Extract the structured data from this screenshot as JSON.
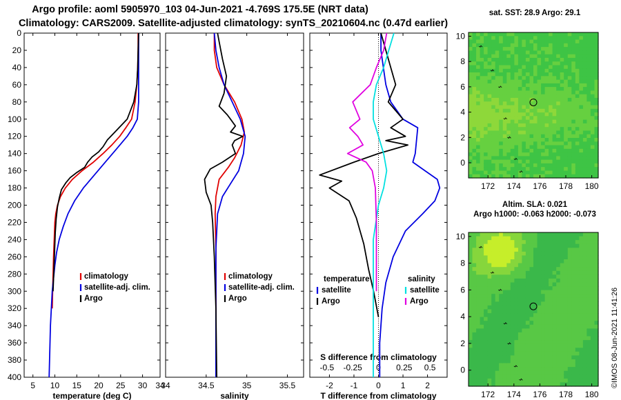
{
  "header": {
    "line1": "Argo profile: aoml 5905970_103 04-Jun-2021 -4.769S 175.5E (NRT data)",
    "line2": "Climatology: CARS2009. Satellite-adjusted climatology: synTS_20210604.nc (0.47d earlier)"
  },
  "colors": {
    "climatology": "#e00000",
    "satellite": "#0000e0",
    "argo": "#000000",
    "satellite_s": "#00e0e0",
    "salinity_diff": "#e000e0"
  },
  "depth_axis": {
    "ylim": [
      0,
      400
    ],
    "ticks": [
      0,
      20,
      40,
      60,
      80,
      100,
      120,
      140,
      160,
      180,
      200,
      220,
      240,
      260,
      280,
      300,
      320,
      340,
      360,
      380,
      400
    ]
  },
  "chart_data": [
    {
      "type": "line",
      "id": "temperature",
      "xlabel": "temperature (deg C)",
      "ylabel": "depth",
      "xlim": [
        3,
        34
      ],
      "ylim": [
        0,
        400
      ],
      "xticks": [
        5,
        10,
        15,
        20,
        25,
        30,
        34
      ],
      "legend": [
        "climatology",
        "satellite-adj. clim.",
        "Argo"
      ],
      "series": [
        {
          "name": "climatology",
          "color_key": "climatology",
          "x": [
            29.0,
            29.0,
            28.9,
            28.7,
            28.3,
            27.5,
            26.2,
            24.8,
            23.0,
            21.0,
            18.8,
            16.2,
            14.0,
            12.4,
            11.3,
            10.6,
            10.2,
            10.0,
            9.7,
            9.5,
            9.4
          ],
          "y": [
            0,
            20,
            40,
            60,
            80,
            100,
            110,
            120,
            130,
            140,
            150,
            160,
            170,
            180,
            190,
            200,
            210,
            220,
            260,
            300,
            320
          ]
        },
        {
          "name": "satellite-adj. clim.",
          "color_key": "satellite",
          "x": [
            29.1,
            29.1,
            29.1,
            29.1,
            29.1,
            28.8,
            27.8,
            26.5,
            24.0,
            21.5,
            19.0,
            16.5,
            14.5,
            13.0,
            11.9,
            11.0,
            10.4,
            10.0,
            9.4,
            9.0,
            8.7
          ],
          "y": [
            0,
            20,
            40,
            60,
            80,
            100,
            110,
            120,
            135,
            150,
            165,
            180,
            195,
            210,
            225,
            240,
            255,
            270,
            300,
            340,
            400
          ]
        },
        {
          "name": "Argo",
          "color_key": "argo",
          "x": [
            29.1,
            29.0,
            28.9,
            28.7,
            28.0,
            26.5,
            25.0,
            23.5,
            22.0,
            21.0,
            20.0,
            18.5,
            17.5,
            16.8,
            15.0,
            13.5,
            12.5,
            11.5,
            11.0,
            10.6,
            10.3,
            10.1,
            9.9,
            9.6
          ],
          "y": [
            0,
            20,
            40,
            60,
            80,
            100,
            108,
            116,
            124,
            132,
            138,
            144,
            150,
            156,
            162,
            168,
            174,
            182,
            192,
            202,
            216,
            232,
            260,
            300
          ]
        }
      ]
    },
    {
      "type": "line",
      "id": "salinity",
      "xlabel": "salinity",
      "ylabel": "depth",
      "xlim": [
        34,
        35.7
      ],
      "ylim": [
        0,
        400
      ],
      "xticks": [
        34,
        34.5,
        35,
        35.5
      ],
      "legend": [
        "climatology",
        "satellite-adj. clim.",
        "Argo"
      ],
      "series": [
        {
          "name": "climatology",
          "color_key": "climatology",
          "x": [
            34.6,
            34.6,
            34.63,
            34.72,
            34.85,
            34.94,
            34.97,
            34.93,
            34.85,
            34.78,
            34.66,
            34.62,
            34.61,
            34.62,
            34.62,
            34.62
          ],
          "y": [
            0,
            20,
            40,
            60,
            80,
            100,
            115,
            130,
            145,
            155,
            170,
            190,
            210,
            250,
            300,
            400
          ]
        },
        {
          "name": "satellite-adj. clim.",
          "color_key": "satellite",
          "x": [
            34.6,
            34.62,
            34.66,
            34.72,
            34.82,
            34.92,
            34.98,
            34.96,
            34.9,
            34.8,
            34.7,
            34.64,
            34.62,
            34.62
          ],
          "y": [
            0,
            20,
            40,
            60,
            80,
            100,
            120,
            140,
            160,
            175,
            190,
            210,
            250,
            400
          ]
        },
        {
          "name": "Argo",
          "color_key": "argo",
          "x": [
            34.64,
            34.66,
            34.7,
            34.75,
            34.72,
            34.66,
            34.76,
            34.8,
            34.86,
            34.8,
            34.95,
            34.85,
            34.82,
            34.86,
            34.7,
            34.55,
            34.48,
            34.5,
            34.56,
            34.58,
            34.6,
            34.62,
            34.63
          ],
          "y": [
            0,
            10,
            30,
            50,
            70,
            85,
            95,
            100,
            108,
            115,
            120,
            125,
            130,
            140,
            150,
            158,
            170,
            185,
            200,
            220,
            260,
            320,
            400
          ]
        }
      ]
    },
    {
      "type": "line",
      "id": "difference",
      "xlabel": "T difference from climatology",
      "xlabel2": "S difference from climatology",
      "xlim": [
        -2.8,
        2.8
      ],
      "ylim": [
        0,
        400
      ],
      "xticks": [
        -2,
        -1,
        0,
        1,
        2
      ],
      "xticks2": [
        "-0.5",
        "-0.25",
        "0",
        "0.25",
        "0.5"
      ],
      "legend_left_title": "temperature",
      "legend_right_title": "salinity",
      "legend_left": [
        "satellite",
        "Argo"
      ],
      "legend_right": [
        "satellite",
        "Argo"
      ],
      "series": [
        {
          "name": "T satellite",
          "color_key": "satellite",
          "x": [
            0.1,
            0.1,
            0.2,
            0.3,
            0.5,
            1.0,
            1.6,
            1.5,
            1.4,
            1.9,
            2.4,
            2.5,
            2.3,
            1.8,
            1.1,
            0.6,
            0.3,
            0.15,
            0.05,
            0.05
          ],
          "y": [
            0,
            20,
            40,
            60,
            80,
            100,
            110,
            140,
            150,
            160,
            170,
            180,
            195,
            210,
            230,
            260,
            290,
            320,
            360,
            400
          ]
        },
        {
          "name": "T Argo",
          "color_key": "argo",
          "x": [
            0.1,
            0.3,
            0.5,
            0.7,
            0.4,
            1.0,
            0.5,
            1.1,
            0.3,
            1.2,
            0.0,
            -1.0,
            -2.4,
            -1.5,
            -2.0,
            -1.2,
            -0.9,
            -0.6,
            -0.4,
            -0.2,
            0.0
          ],
          "y": [
            0,
            20,
            40,
            60,
            80,
            100,
            110,
            120,
            125,
            130,
            140,
            150,
            165,
            172,
            180,
            195,
            215,
            245,
            275,
            300,
            330
          ]
        },
        {
          "name": "S satellite",
          "color_key": "satellite_s",
          "x": [
            0.15,
            0.1,
            0.05,
            -0.02,
            -0.05,
            -0.05,
            0.0,
            0.05,
            0.08,
            0.05,
            0.0,
            -0.05,
            -0.05,
            -0.05
          ],
          "y": [
            0,
            20,
            40,
            60,
            80,
            100,
            120,
            140,
            160,
            180,
            200,
            240,
            300,
            400
          ]
        },
        {
          "name": "S Argo",
          "color_key": "salinity_diff",
          "x": [
            0.08,
            0.05,
            -0.02,
            -0.08,
            -0.25,
            -0.18,
            -0.28,
            -0.2,
            -0.15,
            -0.3,
            -0.12,
            -0.06,
            -0.03,
            -0.02,
            -0.02
          ],
          "y": [
            0,
            20,
            40,
            60,
            80,
            100,
            110,
            120,
            130,
            140,
            150,
            160,
            180,
            220,
            300
          ]
        }
      ]
    },
    {
      "type": "heatmap",
      "id": "sst_map",
      "title": "sat. SST: 28.9 Argo: 29.1",
      "xticks": [
        172,
        174,
        176,
        178,
        180
      ],
      "yticks": [
        0,
        2,
        4,
        6,
        8,
        10
      ],
      "xlim": [
        170.5,
        180.5
      ],
      "ylim": [
        -1.2,
        10.3
      ],
      "marker": {
        "lon": 175.5,
        "lat": 4.769
      },
      "palette": [
        "#22b844",
        "#3ec445",
        "#66d040",
        "#8ed83a"
      ]
    },
    {
      "type": "heatmap",
      "id": "sla_map",
      "title": "Altim. SLA: 0.021",
      "subtitle": "Argo h1000: -0.063 h2000: -0.073",
      "xticks": [
        172,
        174,
        176,
        178,
        180
      ],
      "yticks": [
        0,
        2,
        4,
        6,
        8,
        10
      ],
      "xlim": [
        170.5,
        180.5
      ],
      "ylim": [
        -1.2,
        10.3
      ],
      "marker": {
        "lon": 175.5,
        "lat": 4.769
      },
      "palette": [
        "#3ab84a",
        "#58c845",
        "#86d63c",
        "#c6ee2a"
      ]
    }
  ],
  "stamp": "©IMOS 08-Jun-2021 11:41:26"
}
